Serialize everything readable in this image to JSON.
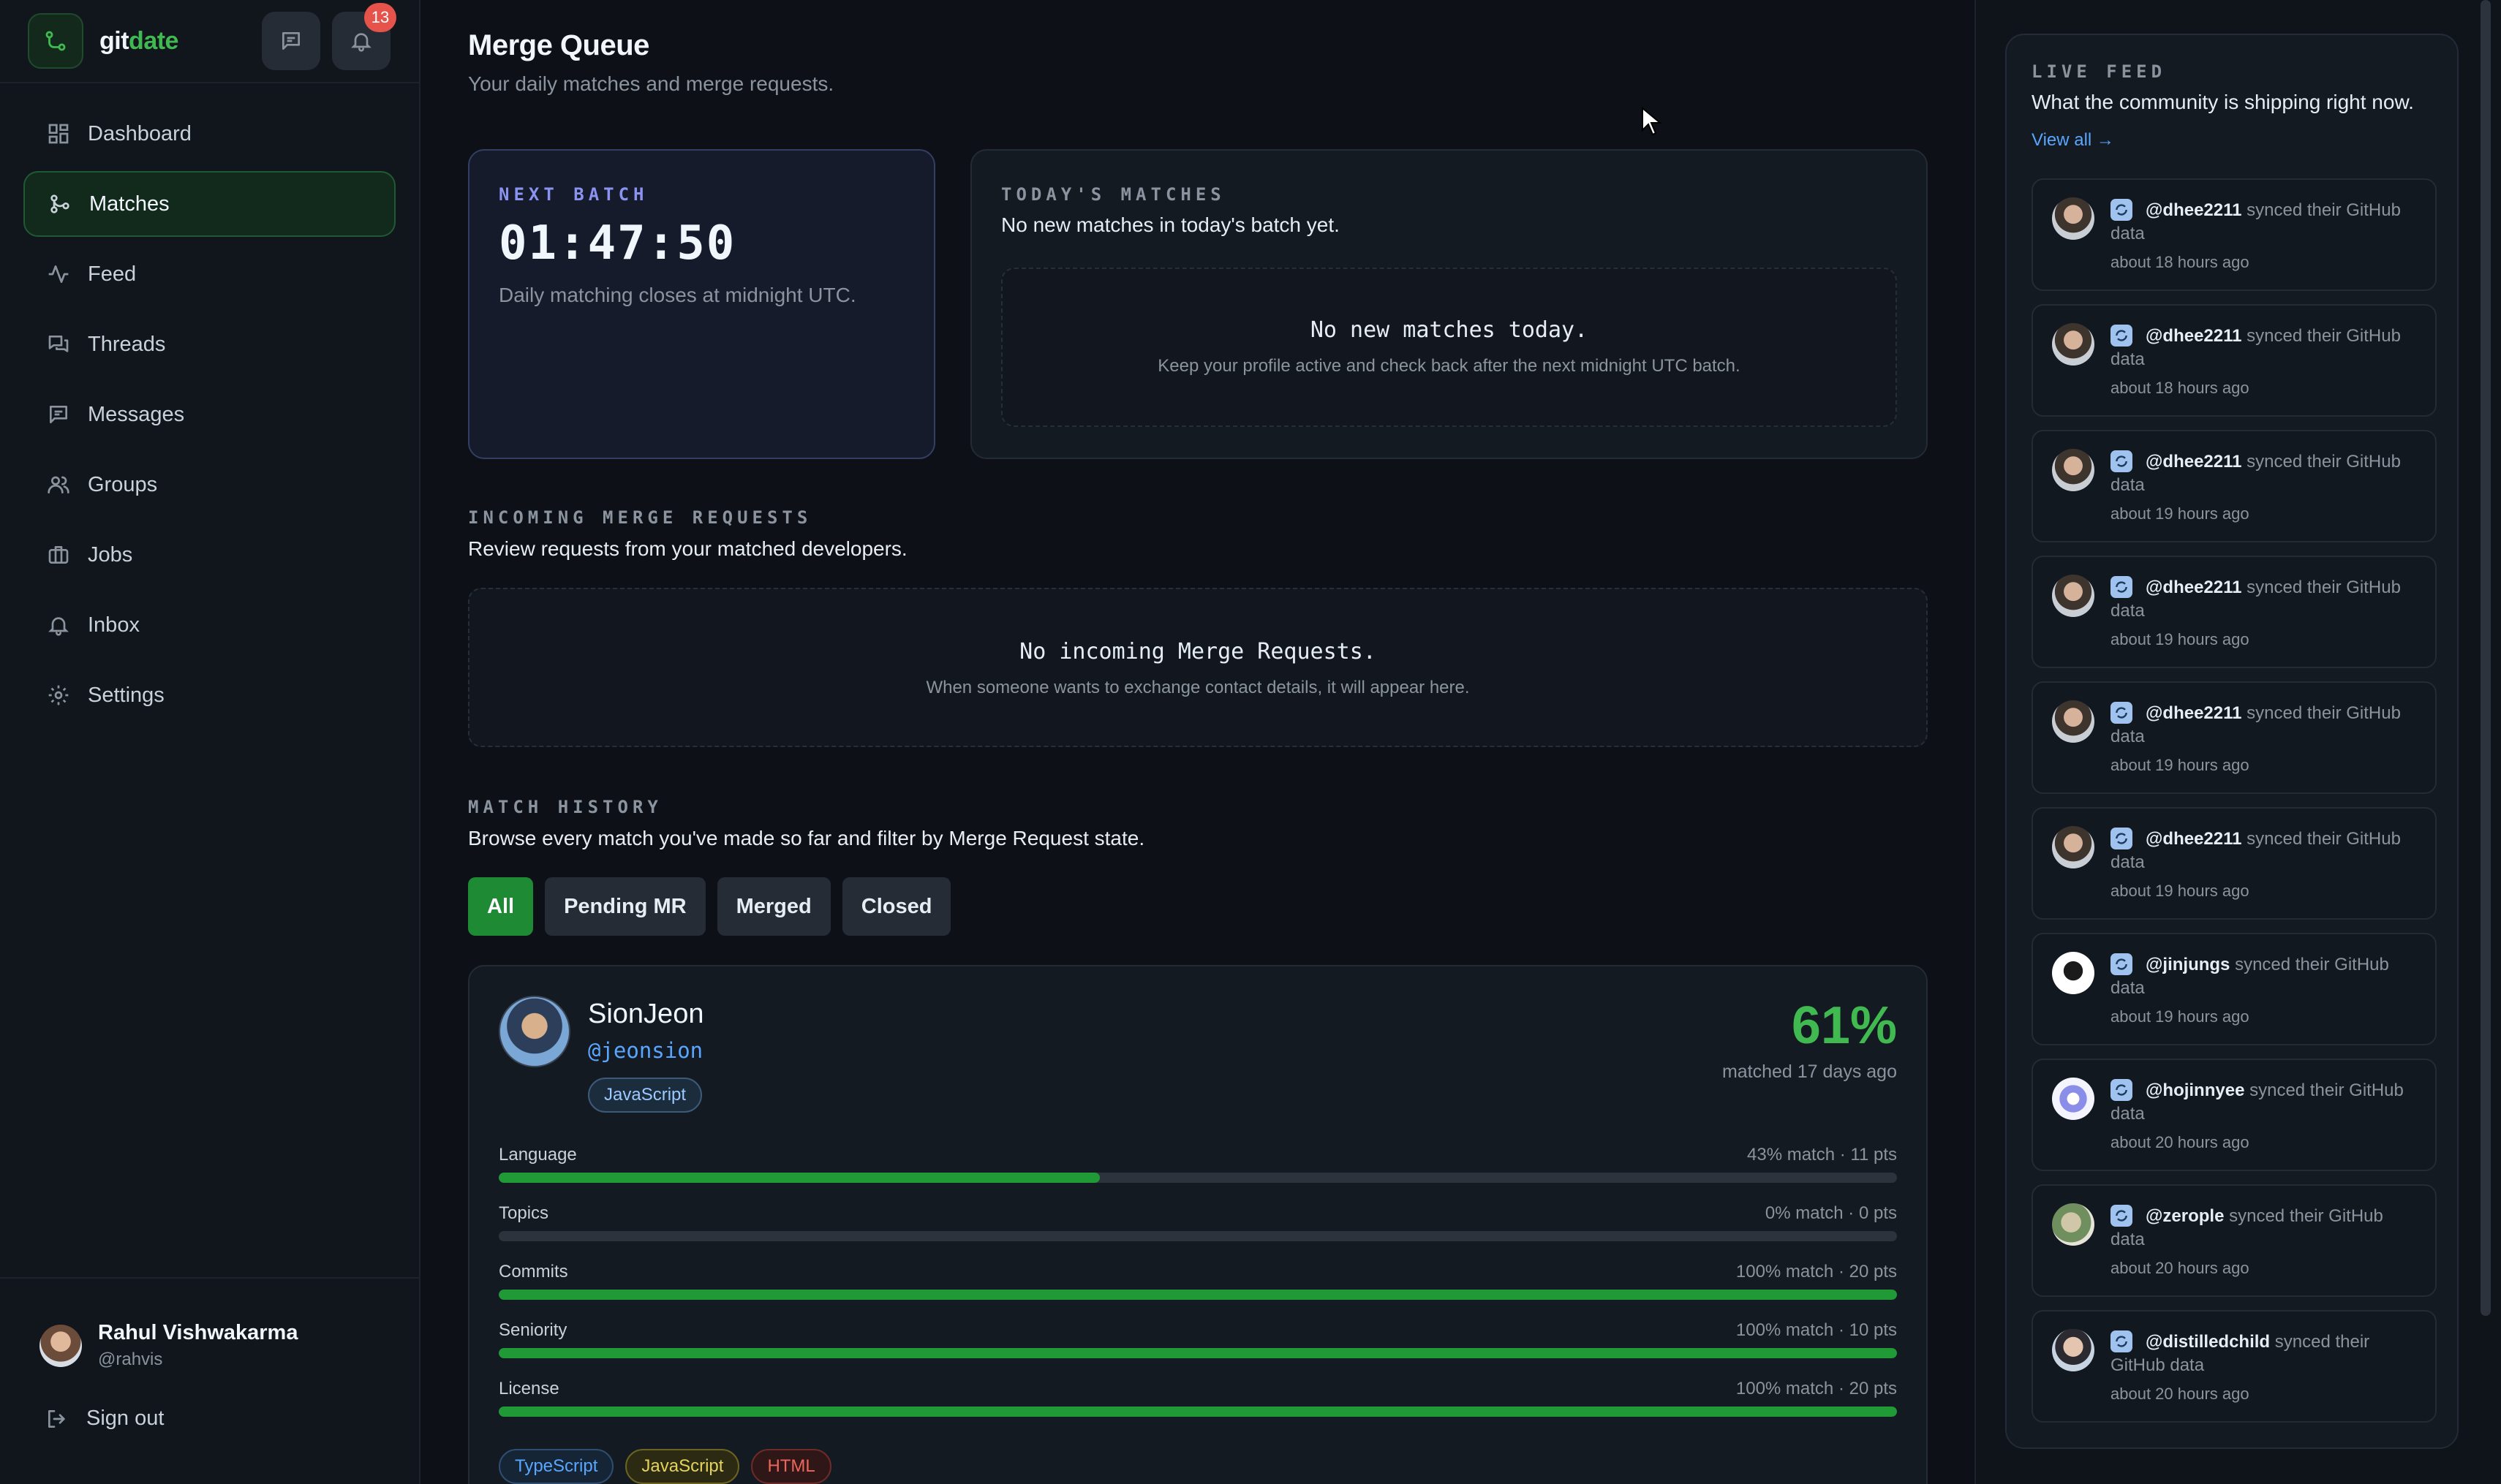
{
  "brand": {
    "part1": "git",
    "part2": "date"
  },
  "header": {
    "notification_count": "13"
  },
  "sidebar": {
    "items": [
      {
        "label": "Dashboard",
        "icon": "dashboard-icon"
      },
      {
        "label": "Matches",
        "icon": "git-merge-icon",
        "active": true
      },
      {
        "label": "Feed",
        "icon": "activity-icon"
      },
      {
        "label": "Threads",
        "icon": "threads-icon"
      },
      {
        "label": "Messages",
        "icon": "message-icon"
      },
      {
        "label": "Groups",
        "icon": "users-icon"
      },
      {
        "label": "Jobs",
        "icon": "briefcase-icon"
      },
      {
        "label": "Inbox",
        "icon": "bell-icon"
      },
      {
        "label": "Settings",
        "icon": "gear-icon"
      }
    ],
    "user": {
      "name": "Rahul Vishwakarma",
      "handle": "@rahvis"
    },
    "sign_out": "Sign out"
  },
  "page": {
    "title": "Merge Queue",
    "subtitle": "Your daily matches and merge requests."
  },
  "next_batch": {
    "eyebrow": "NEXT BATCH",
    "timer": "01:47:50",
    "note": "Daily matching closes at midnight UTC."
  },
  "todays_matches": {
    "eyebrow": "TODAY'S MATCHES",
    "subtitle": "No new matches in today's batch yet.",
    "empty_title": "No new matches today.",
    "empty_note": "Keep your profile active and check back after the next midnight UTC batch."
  },
  "incoming": {
    "eyebrow": "INCOMING MERGE REQUESTS",
    "subtitle": "Review requests from your matched developers.",
    "empty_title": "No incoming Merge Requests.",
    "empty_note": "When someone wants to exchange contact details, it will appear here."
  },
  "history": {
    "eyebrow": "MATCH HISTORY",
    "subtitle": "Browse every match you've made so far and filter by Merge Request state.",
    "filters": [
      "All",
      "Pending MR",
      "Merged",
      "Closed"
    ],
    "active_filter": "All"
  },
  "match": {
    "name": "SionJeon",
    "handle": "@jeonsion",
    "primary_tag": "JavaScript",
    "percent": "61%",
    "when": "matched 17 days ago",
    "metrics": [
      {
        "label": "Language",
        "detail": "43% match · 11 pts",
        "fraction": 0.43
      },
      {
        "label": "Topics",
        "detail": "0% match · 0 pts",
        "fraction": 0
      },
      {
        "label": "Commits",
        "detail": "100% match · 20 pts",
        "fraction": 1
      },
      {
        "label": "Seniority",
        "detail": "100% match · 10 pts",
        "fraction": 1
      },
      {
        "label": "License",
        "detail": "100% match · 20 pts",
        "fraction": 1
      }
    ],
    "tags": [
      "TypeScript",
      "JavaScript",
      "HTML"
    ]
  },
  "feed": {
    "eyebrow": "LIVE FEED",
    "subtitle": "What the community is shipping right now.",
    "view_all": "View all →",
    "items": [
      {
        "user": "@dhee2211",
        "action": "synced their GitHub data",
        "time": "about 18 hours ago"
      },
      {
        "user": "@dhee2211",
        "action": "synced their GitHub data",
        "time": "about 18 hours ago"
      },
      {
        "user": "@dhee2211",
        "action": "synced their GitHub data",
        "time": "about 19 hours ago"
      },
      {
        "user": "@dhee2211",
        "action": "synced their GitHub data",
        "time": "about 19 hours ago"
      },
      {
        "user": "@dhee2211",
        "action": "synced their GitHub data",
        "time": "about 19 hours ago"
      },
      {
        "user": "@dhee2211",
        "action": "synced their GitHub data",
        "time": "about 19 hours ago"
      },
      {
        "user": "@jinjungs",
        "action": "synced their GitHub data",
        "time": "about 19 hours ago"
      },
      {
        "user": "@hojinnyee",
        "action": "synced their GitHub data",
        "time": "about 20 hours ago"
      },
      {
        "user": "@zerople",
        "action": "synced their GitHub data",
        "time": "about 20 hours ago"
      },
      {
        "user": "@distilledchild",
        "action": "synced their GitHub data",
        "time": "about 20 hours ago"
      }
    ]
  },
  "colors": {
    "accent": "#3fb950",
    "link": "#58a6ff",
    "badge": "#e5534b"
  }
}
